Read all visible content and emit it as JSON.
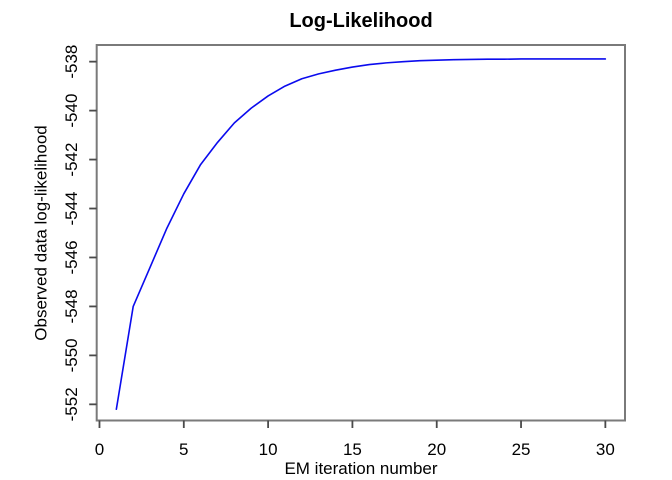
{
  "chart_data": {
    "type": "line",
    "title": "Log-Likelihood",
    "xlabel": "EM iteration number",
    "ylabel": "Observed data log-likelihood",
    "x": [
      1,
      2,
      3,
      4,
      5,
      6,
      7,
      8,
      9,
      10,
      11,
      12,
      13,
      14,
      15,
      16,
      17,
      18,
      19,
      20,
      21,
      22,
      23,
      24,
      25,
      26,
      27,
      28,
      29,
      30
    ],
    "y": [
      -552.2,
      -548.0,
      -546.4,
      -544.8,
      -543.4,
      -542.2,
      -541.3,
      -540.5,
      -539.9,
      -539.4,
      -539.0,
      -538.7,
      -538.5,
      -538.35,
      -538.22,
      -538.12,
      -538.05,
      -538.0,
      -537.96,
      -537.94,
      -537.92,
      -537.91,
      -537.9,
      -537.9,
      -537.89,
      -537.89,
      -537.89,
      -537.89,
      -537.89,
      -537.89
    ],
    "x_ticks": [
      0,
      5,
      10,
      15,
      20,
      25,
      30
    ],
    "y_ticks": [
      -552,
      -550,
      -548,
      -546,
      -544,
      -542,
      -540,
      -538
    ],
    "x_range": [
      -0.165,
      31.165
    ],
    "y_range": [
      -552.66,
      -537.32
    ],
    "grid": "off",
    "legend": "none",
    "line_color": "#0b0bee",
    "box_color": "#7a7a7a",
    "tick_color": "#4a4a4a",
    "text_color": "#000000",
    "background": "#ffffff"
  }
}
